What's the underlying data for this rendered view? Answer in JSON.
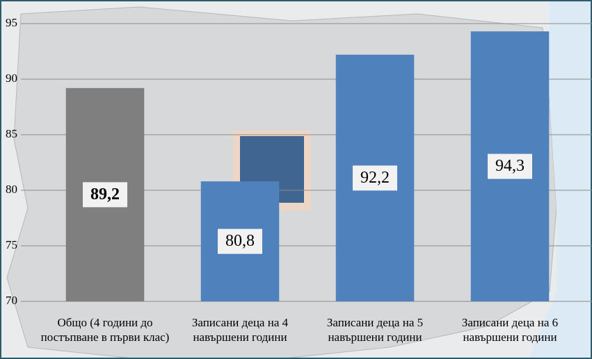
{
  "chart_data": {
    "type": "bar",
    "categories": [
      "Общо (4 години до постъпване в първи клас)",
      "Записани деца на 4 навършени години",
      "Записани деца на 5 навършени години",
      "Записани деца на 6 навършени години"
    ],
    "values": [
      89.2,
      80.8,
      92.2,
      94.3
    ],
    "value_labels": [
      "89,2",
      "80,8",
      "92,2",
      "94,3"
    ],
    "colors": [
      "#7f7f7f",
      "#4f81bd",
      "#4f81bd",
      "#4f81bd"
    ],
    "ylim": [
      70,
      95
    ],
    "yticks": [
      70,
      75,
      80,
      85,
      90,
      95
    ],
    "grid": true
  }
}
